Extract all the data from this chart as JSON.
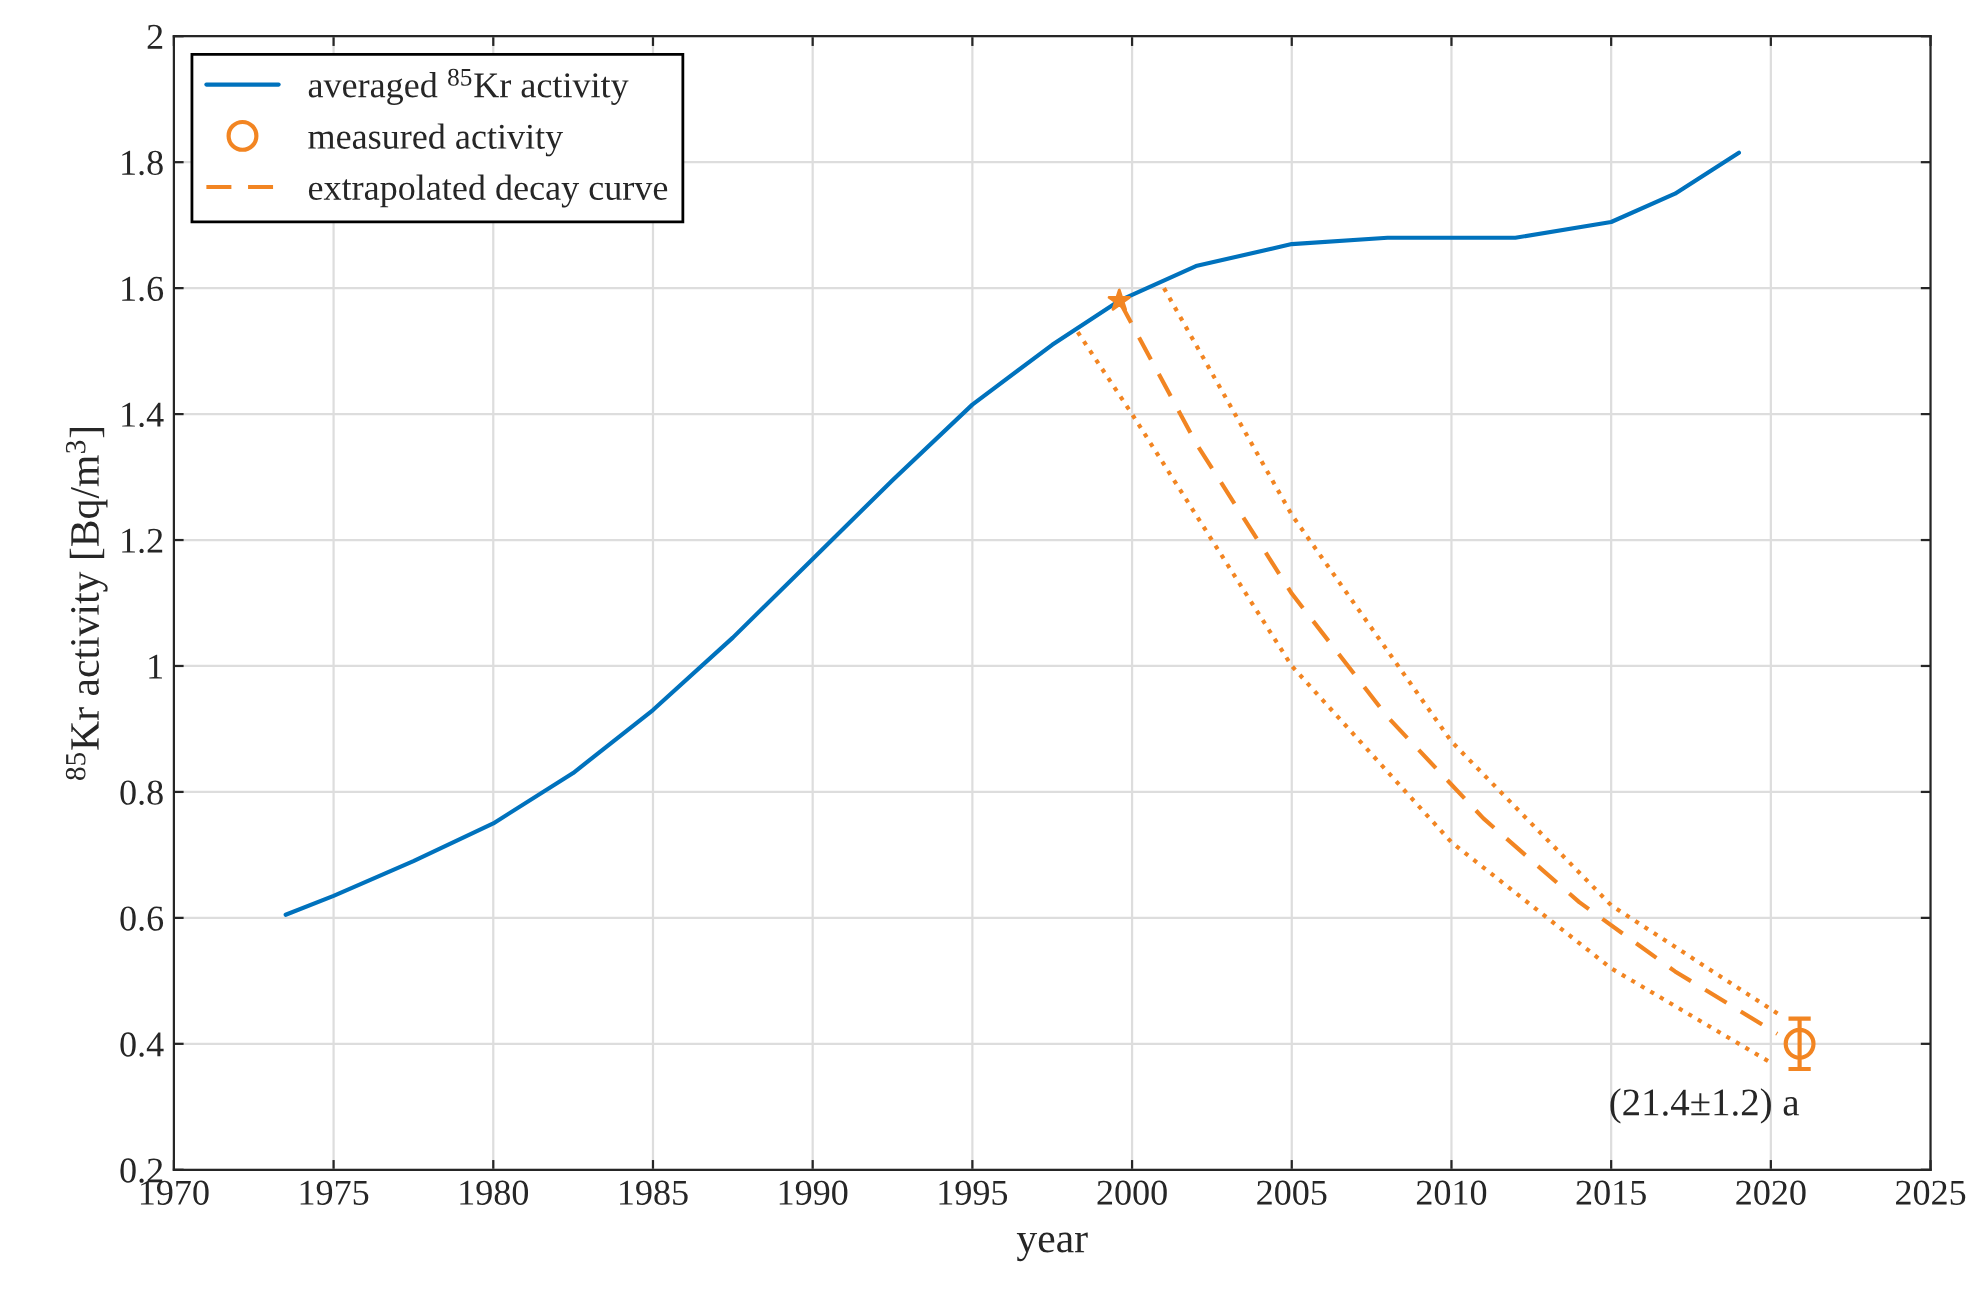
{
  "chart_data": {
    "type": "line",
    "xlabel": "year",
    "ylabel": "$^{85}$Kr activity [Bq/m$^{3}$]",
    "xlim": [
      1970,
      2025
    ],
    "xticks": [
      1970,
      1975,
      1980,
      1985,
      1990,
      1995,
      2000,
      2005,
      2010,
      2015,
      2020,
      2025
    ],
    "ylim": [
      0.2,
      2
    ],
    "yticks": [
      0.2,
      0.4,
      0.6,
      0.8,
      1,
      1.2,
      1.4,
      1.6,
      1.8,
      2
    ],
    "grid": true,
    "legend": "top left",
    "series": [
      {
        "name": "averaged $^{85}$Kr activity",
        "color": "#0072bd",
        "line_style": "solid",
        "x": [
          1973.5,
          1975,
          1977.5,
          1980,
          1982.5,
          1985,
          1987.5,
          1990,
          1992.5,
          1995,
          1997.5,
          1999.6,
          2002,
          2005,
          2008,
          2010,
          2012,
          2015,
          2017,
          2019
        ],
        "values": [
          0.605,
          0.635,
          0.69,
          0.75,
          0.83,
          0.93,
          1.045,
          1.17,
          1.295,
          1.415,
          1.51,
          1.58,
          1.635,
          1.67,
          1.68,
          1.68,
          1.68,
          1.705,
          1.75,
          1.815
        ]
      },
      {
        "name": "measured activity",
        "type": "scatter",
        "color": "#f28522",
        "marker": "circle",
        "x": [
          2020.9
        ],
        "values": [
          0.4
        ],
        "errors": [
          0.04
        ]
      },
      {
        "name": "extrapolated decay curve",
        "type": "line",
        "color": "#f28522",
        "line_style": "dashed",
        "x": [
          1999.6,
          2002,
          2005,
          2008,
          2011,
          2014,
          2017,
          2020.2
        ],
        "values": [
          1.58,
          1.354,
          1.115,
          0.919,
          0.758,
          0.625,
          0.515,
          0.416
        ]
      },
      {
        "type": "line",
        "color": "#f28522",
        "line_style": "dotted",
        "x": [
          2001,
          2005,
          2010,
          2015,
          2020.3
        ],
        "values": [
          1.6,
          1.24,
          0.88,
          0.62,
          0.445
        ]
      },
      {
        "type": "line",
        "color": "#f28522",
        "line_style": "dotted",
        "x": [
          1998.3,
          2000,
          2005,
          2010,
          2015,
          2020
        ],
        "values": [
          1.53,
          1.4,
          1.0,
          0.72,
          0.52,
          0.37
        ]
      },
      {
        "type": "scatter",
        "color": "#f28522",
        "marker": "star",
        "x": [
          1999.6
        ],
        "values": [
          1.58
        ]
      }
    ],
    "annotations": [
      {
        "text": "(21.4±1.2) a",
        "x": 2020.9,
        "y": 0.4
      }
    ]
  }
}
